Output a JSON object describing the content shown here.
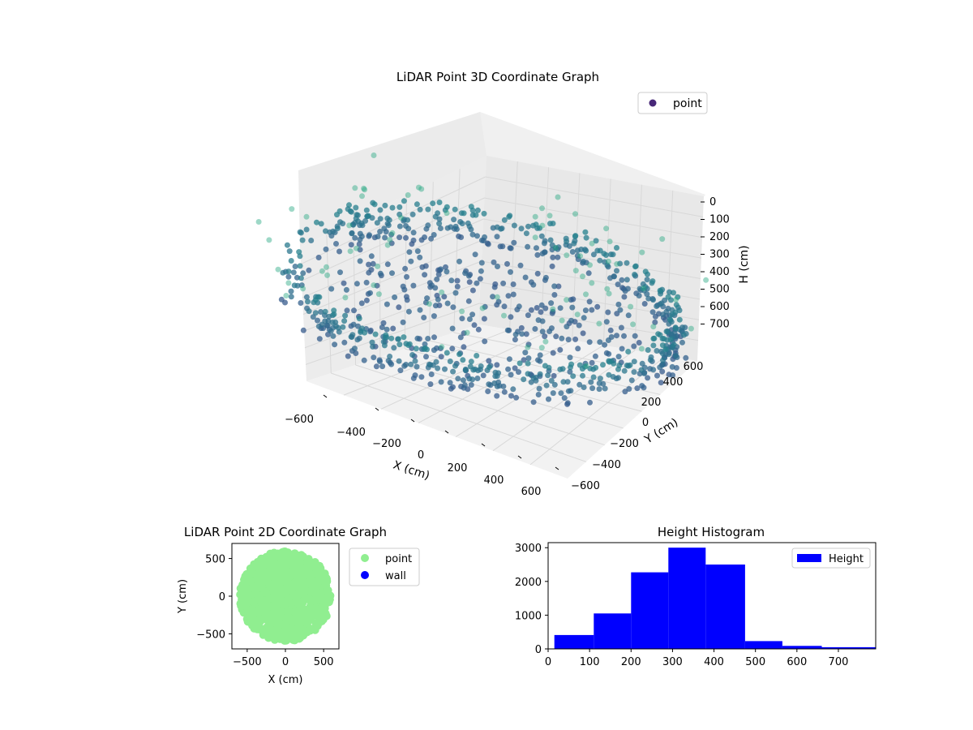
{
  "chart_data": [
    {
      "type": "scatter",
      "title": "LiDAR Point 3D Coordinate Graph",
      "xlabel": "X (cm)",
      "ylabel": "Y (cm)",
      "zlabel": "H (cm)",
      "xlim": [
        -700,
        700
      ],
      "ylim": [
        -700,
        700
      ],
      "zlim": [
        780,
        0
      ],
      "x_ticks": [
        "−600",
        "−400",
        "−200",
        "0",
        "200",
        "400",
        "600"
      ],
      "y_ticks": [
        "−600",
        "−400",
        "−200",
        "0",
        "200",
        "400",
        "600"
      ],
      "z_ticks": [
        "0",
        "100",
        "200",
        "300",
        "400",
        "500",
        "600",
        "700"
      ],
      "grid": true,
      "legend": {
        "position": "top-right",
        "entries": [
          {
            "label": "point",
            "color": "#482878"
          }
        ]
      },
      "colormap": "viridis",
      "series": [
        {
          "name": "point",
          "description_of_distribution": "ring of radius ~600 at height 250-420, inner disc, outliers near height 0"
        }
      ]
    },
    {
      "type": "scatter",
      "title": "LiDAR Point 2D Coordinate Graph",
      "xlabel": "X (cm)",
      "ylabel": "Y (cm)",
      "xlim": [
        -700,
        700
      ],
      "ylim": [
        -700,
        700
      ],
      "x_ticks": [
        -500,
        0,
        500
      ],
      "y_ticks": [
        -500,
        0,
        500
      ],
      "legend": {
        "position": "outside-right",
        "entries": [
          {
            "label": "point",
            "color": "#90ee90"
          },
          {
            "label": "wall",
            "color": "#0000ff"
          }
        ]
      }
    },
    {
      "type": "bar",
      "title": "Height Histogram",
      "xlabel": "",
      "ylabel": "",
      "xlim": [
        0,
        790
      ],
      "ylim": [
        0,
        3150
      ],
      "x_ticks": [
        0,
        100,
        200,
        300,
        400,
        500,
        600,
        700
      ],
      "y_ticks": [
        0,
        1000,
        2000,
        3000
      ],
      "legend": {
        "position": "top-right",
        "entries": [
          {
            "label": "Height",
            "color": "#0000ff"
          }
        ]
      },
      "bins": [
        {
          "x0": 15,
          "x1": 110,
          "count": 410
        },
        {
          "x0": 110,
          "x1": 200,
          "count": 1050
        },
        {
          "x0": 200,
          "x1": 290,
          "count": 2270
        },
        {
          "x0": 290,
          "x1": 380,
          "count": 3000
        },
        {
          "x0": 380,
          "x1": 475,
          "count": 2500
        },
        {
          "x0": 475,
          "x1": 565,
          "count": 230
        },
        {
          "x0": 565,
          "x1": 660,
          "count": 90
        },
        {
          "x0": 660,
          "x1": 790,
          "count": 50
        }
      ],
      "color": "#0000ff"
    }
  ]
}
